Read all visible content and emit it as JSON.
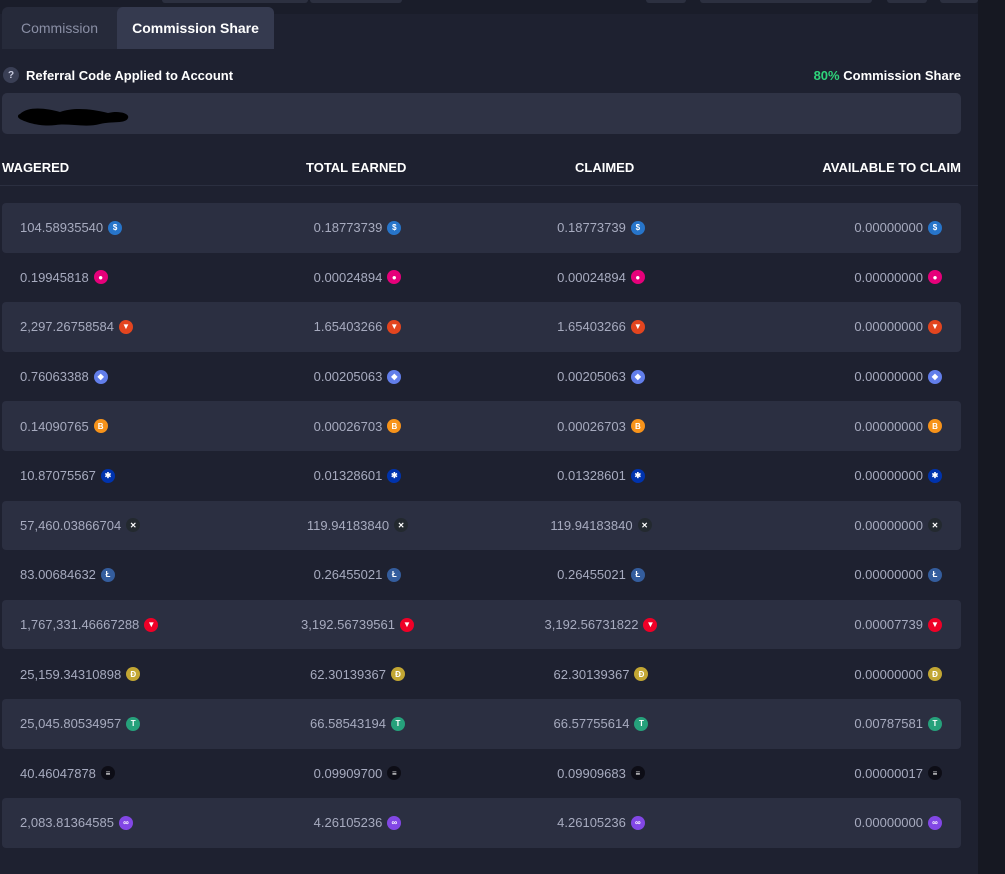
{
  "tabs": [
    {
      "label": "Commission",
      "active": false
    },
    {
      "label": "Commission Share",
      "active": true
    }
  ],
  "referral": {
    "help_icon_glyph": "?",
    "label": "Referral Code Applied to Account",
    "share_pct": "80%",
    "share_label": "Commission Share"
  },
  "columns": [
    "WAGERED",
    "TOTAL EARNED",
    "CLAIMED",
    "AVAILABLE TO CLAIM"
  ],
  "rows": [
    {
      "coin": "usdc-icon",
      "wagered": "104.58935540",
      "earned": "0.18773739",
      "claimed": "0.18773739",
      "available": "0.00000000"
    },
    {
      "coin": "dot-icon",
      "wagered": "0.19945818",
      "earned": "0.00024894",
      "claimed": "0.00024894",
      "available": "0.00000000"
    },
    {
      "coin": "shib-icon",
      "wagered": "2,297.26758584",
      "earned": "1.65403266",
      "claimed": "1.65403266",
      "available": "0.00000000"
    },
    {
      "coin": "eth-icon",
      "wagered": "0.76063388",
      "earned": "0.00205063",
      "claimed": "0.00205063",
      "available": "0.00000000"
    },
    {
      "coin": "btc-icon",
      "wagered": "0.14090765",
      "earned": "0.00026703",
      "claimed": "0.00026703",
      "available": "0.00000000"
    },
    {
      "coin": "ada-icon",
      "wagered": "10.87075567",
      "earned": "0.01328601",
      "claimed": "0.01328601",
      "available": "0.00000000"
    },
    {
      "coin": "xrp-icon",
      "wagered": "57,460.03866704",
      "earned": "119.94183840",
      "claimed": "119.94183840",
      "available": "0.00000000"
    },
    {
      "coin": "ltc-icon",
      "wagered": "83.00684632",
      "earned": "0.26455021",
      "claimed": "0.26455021",
      "available": "0.00000000"
    },
    {
      "coin": "trx-icon",
      "wagered": "1,767,331.46667288",
      "earned": "3,192.56739561",
      "claimed": "3,192.56731822",
      "available": "0.00007739"
    },
    {
      "coin": "doge-icon",
      "wagered": "25,159.34310898",
      "earned": "62.30139367",
      "claimed": "62.30139367",
      "available": "0.00000000"
    },
    {
      "coin": "usdt-icon",
      "wagered": "25,045.80534957",
      "earned": "66.58543194",
      "claimed": "66.57755614",
      "available": "0.00787581"
    },
    {
      "coin": "sol-icon",
      "wagered": "40.46047878",
      "earned": "0.09909700",
      "claimed": "0.09909683",
      "available": "0.00000017"
    },
    {
      "coin": "matic-icon",
      "wagered": "2,083.81364585",
      "earned": "4.26105236",
      "claimed": "4.26105236",
      "available": "0.00000000"
    }
  ],
  "coin_styles": {
    "usdc-icon": {
      "bg": "#2775ca",
      "glyph": "$"
    },
    "dot-icon": {
      "bg": "#e6007a",
      "glyph": "●"
    },
    "shib-icon": {
      "bg": "#e3451f",
      "glyph": "▼"
    },
    "eth-icon": {
      "bg": "#627eea",
      "glyph": "◆"
    },
    "btc-icon": {
      "bg": "#f7931a",
      "glyph": "B"
    },
    "ada-icon": {
      "bg": "#0033ad",
      "glyph": "✱"
    },
    "xrp-icon": {
      "bg": "#23292f",
      "glyph": "✕"
    },
    "ltc-icon": {
      "bg": "#345d9d",
      "glyph": "Ł"
    },
    "trx-icon": {
      "bg": "#ef0027",
      "glyph": "▼"
    },
    "doge-icon": {
      "bg": "#c2a633",
      "glyph": "Ð"
    },
    "usdt-icon": {
      "bg": "#26a17b",
      "glyph": "T"
    },
    "sol-icon": {
      "bg": "#0d0d16",
      "glyph": "≡"
    },
    "matic-icon": {
      "bg": "#8247e5",
      "glyph": "∞"
    }
  }
}
